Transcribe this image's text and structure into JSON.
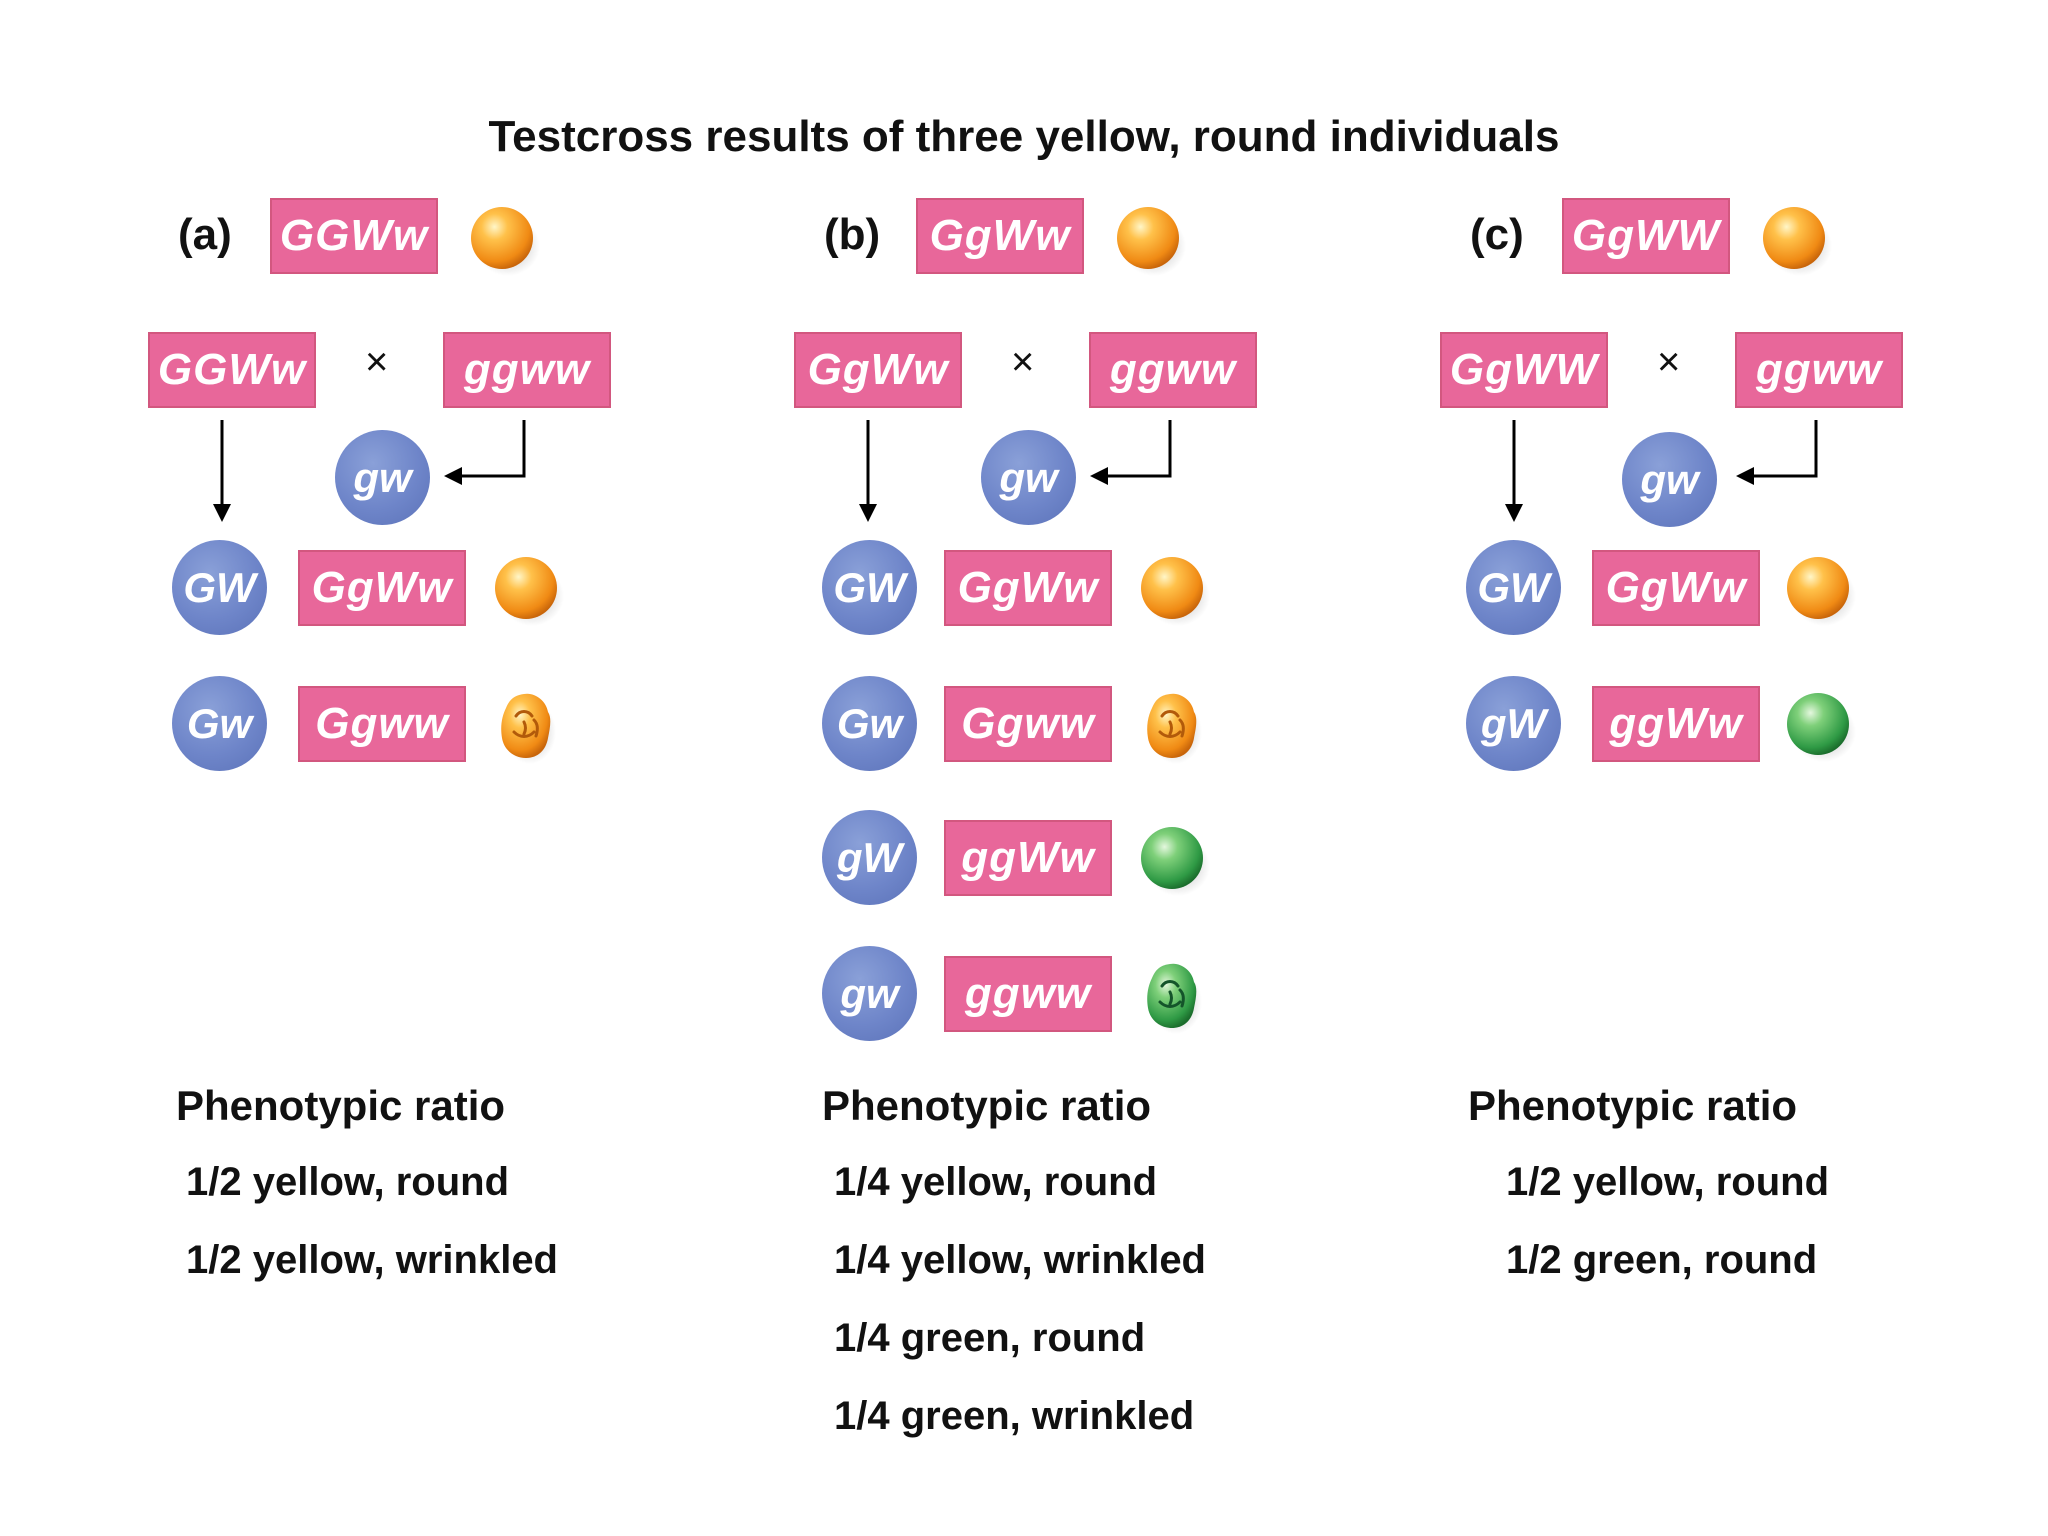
{
  "title": "Testcross results of three yellow, round individuals",
  "gamete_from_tester": "gw",
  "cross_symbol": "×",
  "ratio_heading": "Phenotypic ratio",
  "panels": [
    {
      "label": "(a)",
      "genotype": "GGWw",
      "parent1": "GGWw",
      "parent2": "ggww",
      "offspring": [
        {
          "gamete": "GW",
          "genotype": "GgWw",
          "phenotype": "yellow-round"
        },
        {
          "gamete": "Gw",
          "genotype": "Ggww",
          "phenotype": "yellow-wrinkled"
        }
      ],
      "ratios": [
        "1/2 yellow, round",
        "1/2 yellow, wrinkled"
      ]
    },
    {
      "label": "(b)",
      "genotype": "GgWw",
      "parent1": "GgWw",
      "parent2": "ggww",
      "offspring": [
        {
          "gamete": "GW",
          "genotype": "GgWw",
          "phenotype": "yellow-round"
        },
        {
          "gamete": "Gw",
          "genotype": "Ggww",
          "phenotype": "yellow-wrinkled"
        },
        {
          "gamete": "gW",
          "genotype": "ggWw",
          "phenotype": "green-round"
        },
        {
          "gamete": "gw",
          "genotype": "ggww",
          "phenotype": "green-wrinkled"
        }
      ],
      "ratios": [
        "1/4 yellow, round",
        "1/4 yellow, wrinkled",
        "1/4 green, round",
        "1/4 green, wrinkled"
      ]
    },
    {
      "label": "(c)",
      "genotype": "GgWW",
      "parent1": "GgWW",
      "parent2": "ggww",
      "offspring": [
        {
          "gamete": "GW",
          "genotype": "GgWw",
          "phenotype": "yellow-round"
        },
        {
          "gamete": "gW",
          "genotype": "ggWw",
          "phenotype": "green-round"
        }
      ],
      "ratios": [
        "1/2 yellow, round",
        "1/2 green, round"
      ]
    }
  ],
  "colors": {
    "genotype_box": "#e8679a",
    "gamete_circle": "#6e85c9",
    "yellow_seed": "#f6a531",
    "green_seed": "#3fa456"
  }
}
